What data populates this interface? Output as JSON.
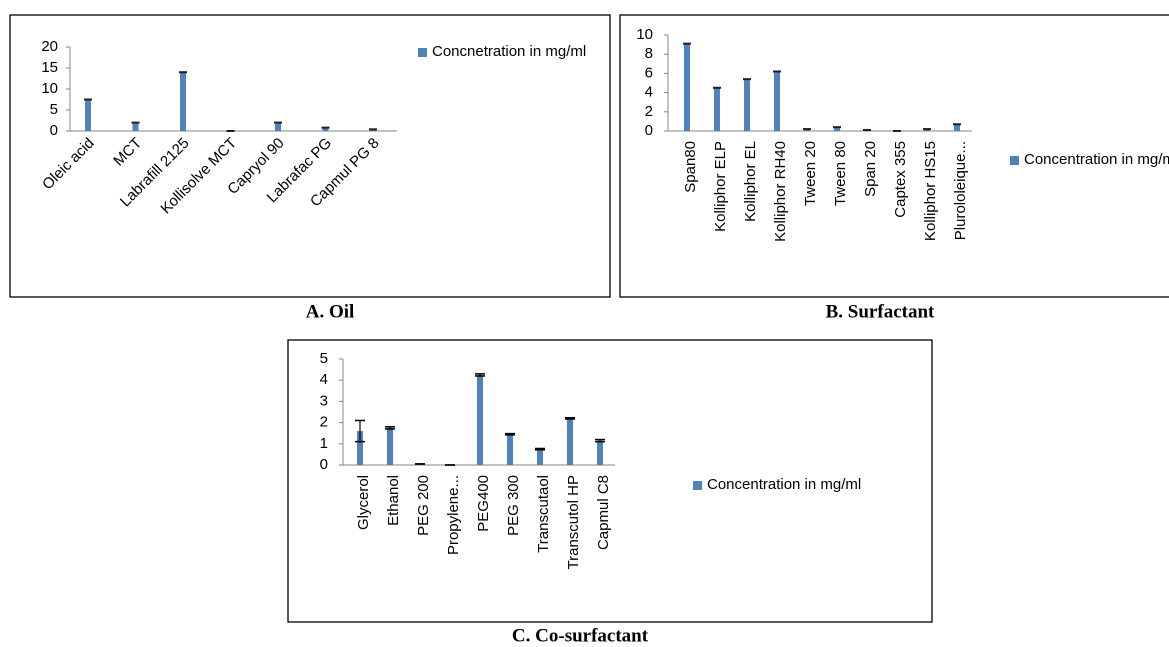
{
  "chart_data": [
    {
      "type": "bar",
      "caption": "A. Oil",
      "categories": [
        "Oleic acid",
        "MCT",
        "Labrafill 2125",
        "Kollisolve MCT",
        "Capryol 90",
        "Labrafac PG",
        "Capmul PG 8"
      ],
      "series": [
        {
          "name": "Concnetration in mg/ml",
          "color": "#4f81bd",
          "values": [
            7.5,
            2,
            14,
            0,
            2,
            0.8,
            0.4
          ]
        }
      ],
      "ylim": [
        0,
        20
      ],
      "yticks": [
        0,
        5,
        10,
        15,
        20
      ],
      "legend": "right"
    },
    {
      "type": "bar",
      "caption": "B. Surfactant",
      "categories": [
        "Span80",
        "Kolliphor ELP",
        "Kolliphor EL",
        "Kolliphor RH40",
        "Tween 20",
        "Tween 80",
        "Span 20",
        "Captex 355",
        "Kolliphor HS15",
        "Plurololeique..."
      ],
      "series": [
        {
          "name": "Concentration in mg/ml",
          "color": "#4f81bd",
          "values": [
            9.1,
            4.5,
            5.4,
            6.2,
            0.2,
            0.4,
            0.1,
            0,
            0.2,
            0.7
          ]
        }
      ],
      "ylim": [
        0,
        10
      ],
      "yticks": [
        0,
        2,
        4,
        6,
        8,
        10
      ],
      "legend": "right"
    },
    {
      "type": "bar",
      "caption": "C. Co-surfactant",
      "categories": [
        "Glycerol",
        "Ethanol",
        "PEG 200",
        "Propylene...",
        "PEG400",
        "PEG 300",
        "Transcutaol",
        "Transcutol HP",
        "Capmul C8"
      ],
      "series": [
        {
          "name": "Concentration in mg/ml",
          "color": "#4f81bd",
          "values": [
            1.6,
            1.75,
            0.05,
            0,
            4.25,
            1.45,
            0.75,
            2.2,
            1.15
          ],
          "errors": [
            0.5,
            0.05,
            0,
            0,
            0.05,
            0.03,
            0.03,
            0.03,
            0.05
          ]
        }
      ],
      "ylim": [
        0,
        5
      ],
      "yticks": [
        0,
        1,
        2,
        3,
        4,
        5
      ],
      "legend": "right"
    }
  ]
}
